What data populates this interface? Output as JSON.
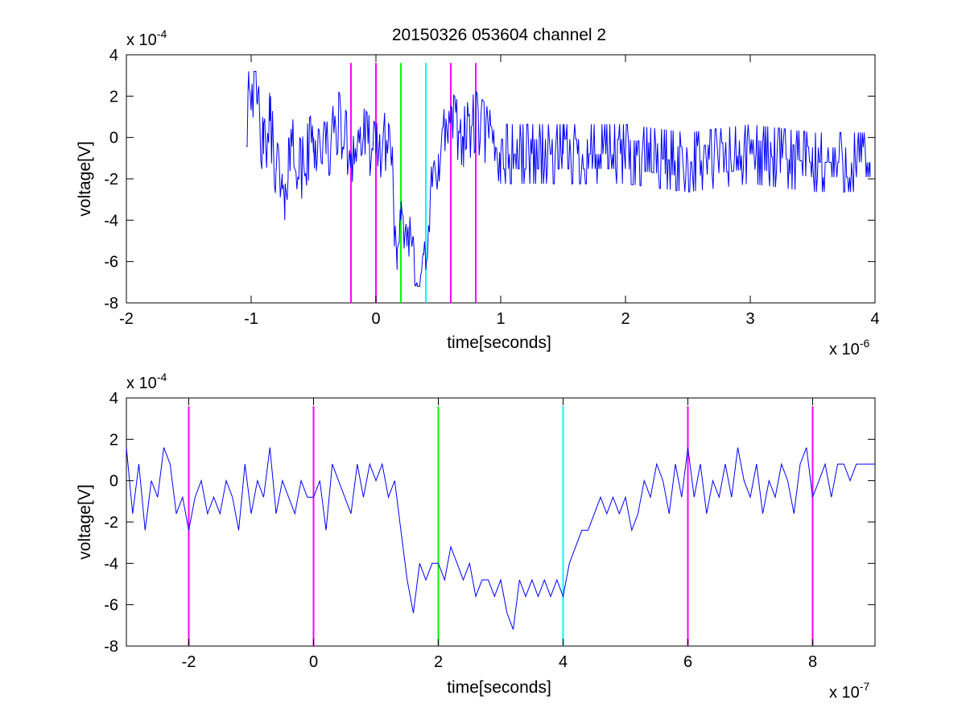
{
  "figure": {
    "title": "20150326 053604 channel 2"
  },
  "chart_data": [
    {
      "type": "line",
      "title": "20150326 053604 channel 2",
      "xlabel": "time[seconds]",
      "ylabel": "voltage[V]",
      "xlim": [
        -2e-06,
        4e-06
      ],
      "ylim": [
        -0.0008,
        0.0004
      ],
      "x_ticks": [
        -2e-06,
        -1e-06,
        0,
        1e-06,
        2e-06,
        3e-06,
        4e-06
      ],
      "x_tick_labels": [
        "-2",
        "-1",
        "0",
        "1",
        "2",
        "3",
        "4"
      ],
      "y_ticks": [
        -0.0008,
        -0.0006,
        -0.0004,
        -0.0002,
        0,
        0.0002,
        0.0004
      ],
      "y_tick_labels": [
        "-8",
        "-6",
        "-4",
        "-2",
        "0",
        "2",
        "4"
      ],
      "x_exponent_label": "x 10",
      "x_exponent": "-6",
      "y_exponent_label": "x 10",
      "y_exponent": "-4",
      "grid": false,
      "series": [
        {
          "color": "#0000ff",
          "x_start": -1.04e-06,
          "x_end": 3.96e-06,
          "description_points": [
            [
              -1.04e-06,
              -4e-05
            ],
            [
              -1.02e-06,
              0.00032
            ],
            [
              -9.5e-07,
              0.00016
            ],
            [
              -9e-07,
              -8e-05
            ],
            [
              -8.5e-07,
              8e-05
            ],
            [
              -8e-07,
              -0.00015
            ],
            [
              -7.5e-07,
              -0.00025
            ],
            [
              -7.3e-07,
              -0.0004
            ],
            [
              -7e-07,
              0.0
            ],
            [
              -6e-07,
              -0.00016
            ],
            [
              -5e-07,
              0.0
            ],
            [
              -4e-07,
              -8e-05
            ],
            [
              -3e-07,
              8e-05
            ],
            [
              -2e-07,
              -8e-05
            ],
            [
              -1e-07,
              0.0
            ],
            [
              0.0,
              -8e-05
            ],
            [
              1e-07,
              0.0
            ],
            [
              1.3e-07,
              -8e-05
            ],
            [
              1.5e-07,
              -0.00048
            ],
            [
              1.7e-07,
              -0.00064
            ],
            [
              2e-07,
              -0.0004
            ],
            [
              2.5e-07,
              -0.00048
            ],
            [
              3e-07,
              -0.00048
            ],
            [
              3.2e-07,
              -0.00072
            ],
            [
              3.8e-07,
              -0.00056
            ],
            [
              4e-07,
              -0.00064
            ],
            [
              4.5e-07,
              -0.00024
            ],
            [
              5e-07,
              -8e-05
            ],
            [
              6e-07,
              8e-05
            ],
            [
              7e-07,
              0.0
            ],
            [
              8e-07,
              8e-05
            ],
            [
              1e-06,
              -8e-05
            ],
            [
              1.5e-06,
              -8e-05
            ],
            [
              2e-06,
              -8e-05
            ],
            [
              2.5e-06,
              -0.00012
            ],
            [
              3e-06,
              -8e-05
            ],
            [
              3.5e-06,
              -0.00012
            ],
            [
              3.96e-06,
              -0.00012
            ]
          ]
        }
      ],
      "vertical_lines": [
        {
          "x": -2e-07,
          "color": "#ff00ff"
        },
        {
          "x": 0.0,
          "color": "#ff00ff"
        },
        {
          "x": 2e-07,
          "color": "#00ff00"
        },
        {
          "x": 4e-07,
          "color": "#00ffff"
        },
        {
          "x": 6e-07,
          "color": "#ff00ff"
        },
        {
          "x": 8e-07,
          "color": "#ff00ff"
        }
      ],
      "vertical_line_range": [
        -0.0008,
        0.00036
      ]
    },
    {
      "type": "line",
      "title": "",
      "xlabel": "time[seconds]",
      "ylabel": "voltage[V]",
      "xlim": [
        -3e-07,
        9e-07
      ],
      "ylim": [
        -0.0008,
        0.0004
      ],
      "x_ticks": [
        -2e-07,
        0,
        2e-07,
        4e-07,
        6e-07,
        8e-07
      ],
      "x_tick_labels": [
        "-2",
        "0",
        "2",
        "4",
        "6",
        "8"
      ],
      "y_ticks": [
        -0.0008,
        -0.0006,
        -0.0004,
        -0.0002,
        0,
        0.0002,
        0.0004
      ],
      "y_tick_labels": [
        "-8",
        "-6",
        "-4",
        "-2",
        "0",
        "2",
        "4"
      ],
      "x_exponent_label": "x 10",
      "x_exponent": "-7",
      "y_exponent_label": "x 10",
      "y_exponent": "-4",
      "grid": false,
      "series": [
        {
          "color": "#0000ff",
          "x": [
            -3e-07,
            -2.9e-07,
            -2.8e-07,
            -2.7e-07,
            -2.6e-07,
            -2.5e-07,
            -2.4e-07,
            -2.3e-07,
            -2.2e-07,
            -2.1e-07,
            -2e-07,
            -1.9e-07,
            -1.8e-07,
            -1.7e-07,
            -1.6e-07,
            -1.5e-07,
            -1.4e-07,
            -1.3e-07,
            -1.2e-07,
            -1.1e-07,
            -1e-07,
            -9e-08,
            -8e-08,
            -7e-08,
            -6e-08,
            -5e-08,
            -4e-08,
            -3e-08,
            -2e-08,
            -1e-08,
            0.0,
            1e-08,
            2e-08,
            3e-08,
            4e-08,
            5e-08,
            6e-08,
            7e-08,
            8e-08,
            9e-08,
            1e-07,
            1.1e-07,
            1.2e-07,
            1.3e-07,
            1.4e-07,
            1.5e-07,
            1.6e-07,
            1.7e-07,
            1.8e-07,
            1.9e-07,
            2e-07,
            2.1e-07,
            2.2e-07,
            2.3e-07,
            2.4e-07,
            2.5e-07,
            2.6e-07,
            2.7e-07,
            2.8e-07,
            2.9e-07,
            3e-07,
            3.1e-07,
            3.2e-07,
            3.3e-07,
            3.4e-07,
            3.5e-07,
            3.6e-07,
            3.7e-07,
            3.8e-07,
            3.9e-07,
            4e-07,
            4.1e-07,
            4.2e-07,
            4.3e-07,
            4.4e-07,
            4.5e-07,
            4.6e-07,
            4.7e-07,
            4.8e-07,
            4.9e-07,
            5e-07,
            5.1e-07,
            5.2e-07,
            5.3e-07,
            5.4e-07,
            5.5e-07,
            5.6e-07,
            5.7e-07,
            5.8e-07,
            5.9e-07,
            6e-07,
            6.1e-07,
            6.2e-07,
            6.3e-07,
            6.4e-07,
            6.5e-07,
            6.6e-07,
            6.7e-07,
            6.8e-07,
            6.9e-07,
            7e-07,
            7.1e-07,
            7.2e-07,
            7.3e-07,
            7.4e-07,
            7.5e-07,
            7.6e-07,
            7.7e-07,
            7.8e-07,
            7.9e-07,
            8e-07,
            8.1e-07,
            8.2e-07,
            8.3e-07,
            8.4e-07,
            8.5e-07,
            8.6e-07,
            8.7e-07,
            8.8e-07,
            8.9e-07,
            9e-07
          ],
          "y": [
            0.00016,
            -0.00016,
            8e-05,
            -0.00024,
            0.0,
            -8e-05,
            0.00016,
            8e-05,
            -0.00016,
            -8e-05,
            -0.00024,
            -8e-05,
            0.0,
            -0.00016,
            -8e-05,
            -0.00016,
            0.0,
            -8e-05,
            -0.00024,
            8e-05,
            -0.00016,
            0.0,
            -8e-05,
            0.00016,
            -0.00016,
            0.0,
            -8e-05,
            -0.00016,
            0.0,
            -8e-05,
            -8e-05,
            0.0,
            -0.00024,
            8e-05,
            0.0,
            -8e-05,
            -0.00016,
            8e-05,
            -8e-05,
            8e-05,
            0.0,
            8e-05,
            -8e-05,
            0.0,
            -0.00024,
            -0.00048,
            -0.00064,
            -0.0004,
            -0.00048,
            -0.0004,
            -0.0004,
            -0.00048,
            -0.00032,
            -0.0004,
            -0.00048,
            -0.0004,
            -0.00056,
            -0.00048,
            -0.00048,
            -0.00056,
            -0.00048,
            -0.00064,
            -0.00072,
            -0.00048,
            -0.00056,
            -0.00048,
            -0.00056,
            -0.00048,
            -0.00056,
            -0.00048,
            -0.00056,
            -0.0004,
            -0.00032,
            -0.00024,
            -0.00024,
            -0.00016,
            -8e-05,
            -0.00016,
            -8e-05,
            -0.00016,
            -8e-05,
            -0.00024,
            -0.00016,
            0.0,
            -8e-05,
            8e-05,
            0.0,
            -0.00016,
            8e-05,
            -8e-05,
            0.00016,
            -8e-05,
            8e-05,
            -0.00016,
            0.0,
            -8e-05,
            8e-05,
            -8e-05,
            0.00016,
            0.0,
            -8e-05,
            8e-05,
            -0.00016,
            0.0,
            -8e-05,
            8e-05,
            0.0,
            -0.00016,
            8e-05,
            0.00016,
            -8e-05,
            0.0,
            8e-05,
            -8e-05,
            8e-05,
            8e-05,
            0.0,
            8e-05,
            8e-05,
            8e-05,
            8e-05
          ]
        }
      ],
      "vertical_lines": [
        {
          "x": -2e-07,
          "color": "#ff00ff"
        },
        {
          "x": 0.0,
          "color": "#ff00ff"
        },
        {
          "x": 2e-07,
          "color": "#00ff00"
        },
        {
          "x": 4e-07,
          "color": "#00ffff"
        },
        {
          "x": 6e-07,
          "color": "#ff00ff"
        },
        {
          "x": 8e-07,
          "color": "#ff00ff"
        }
      ],
      "vertical_line_range": [
        -0.0008,
        0.00036
      ]
    }
  ]
}
